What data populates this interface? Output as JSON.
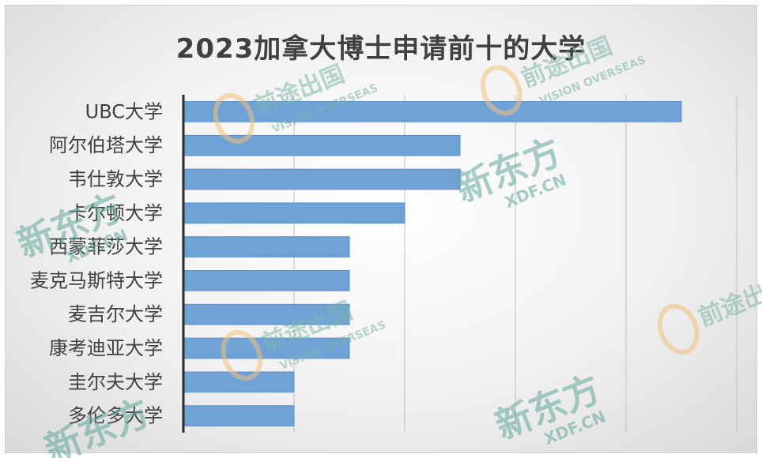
{
  "chart_data": {
    "type": "bar",
    "orientation": "horizontal",
    "title": "2023加拿大博士申请前十的大学",
    "categories": [
      "UBC大学",
      "阿尔伯塔大学",
      "韦仕敦大学",
      "卡尔顿大学",
      "西蒙菲莎大学",
      "麦克马斯特大学",
      "麦吉尔大学",
      "康考迪亚大学",
      "圭尔夫大学",
      "多伦多大学"
    ],
    "series": [
      {
        "values": [
          9,
          5,
          5,
          4,
          3,
          3,
          3,
          3,
          2,
          2
        ]
      }
    ],
    "xlim": [
      0,
      10
    ],
    "x_gridlines": [
      0,
      2,
      4,
      6,
      8,
      10
    ],
    "grid": true,
    "legend": "none",
    "bar_color": "#6fa3d8"
  },
  "watermarks": {
    "brand_cn": "新东方",
    "brand_domain": "XDF.CN",
    "vision_cn": "前途出国",
    "vision_en": "VISION OVERSEAS"
  }
}
